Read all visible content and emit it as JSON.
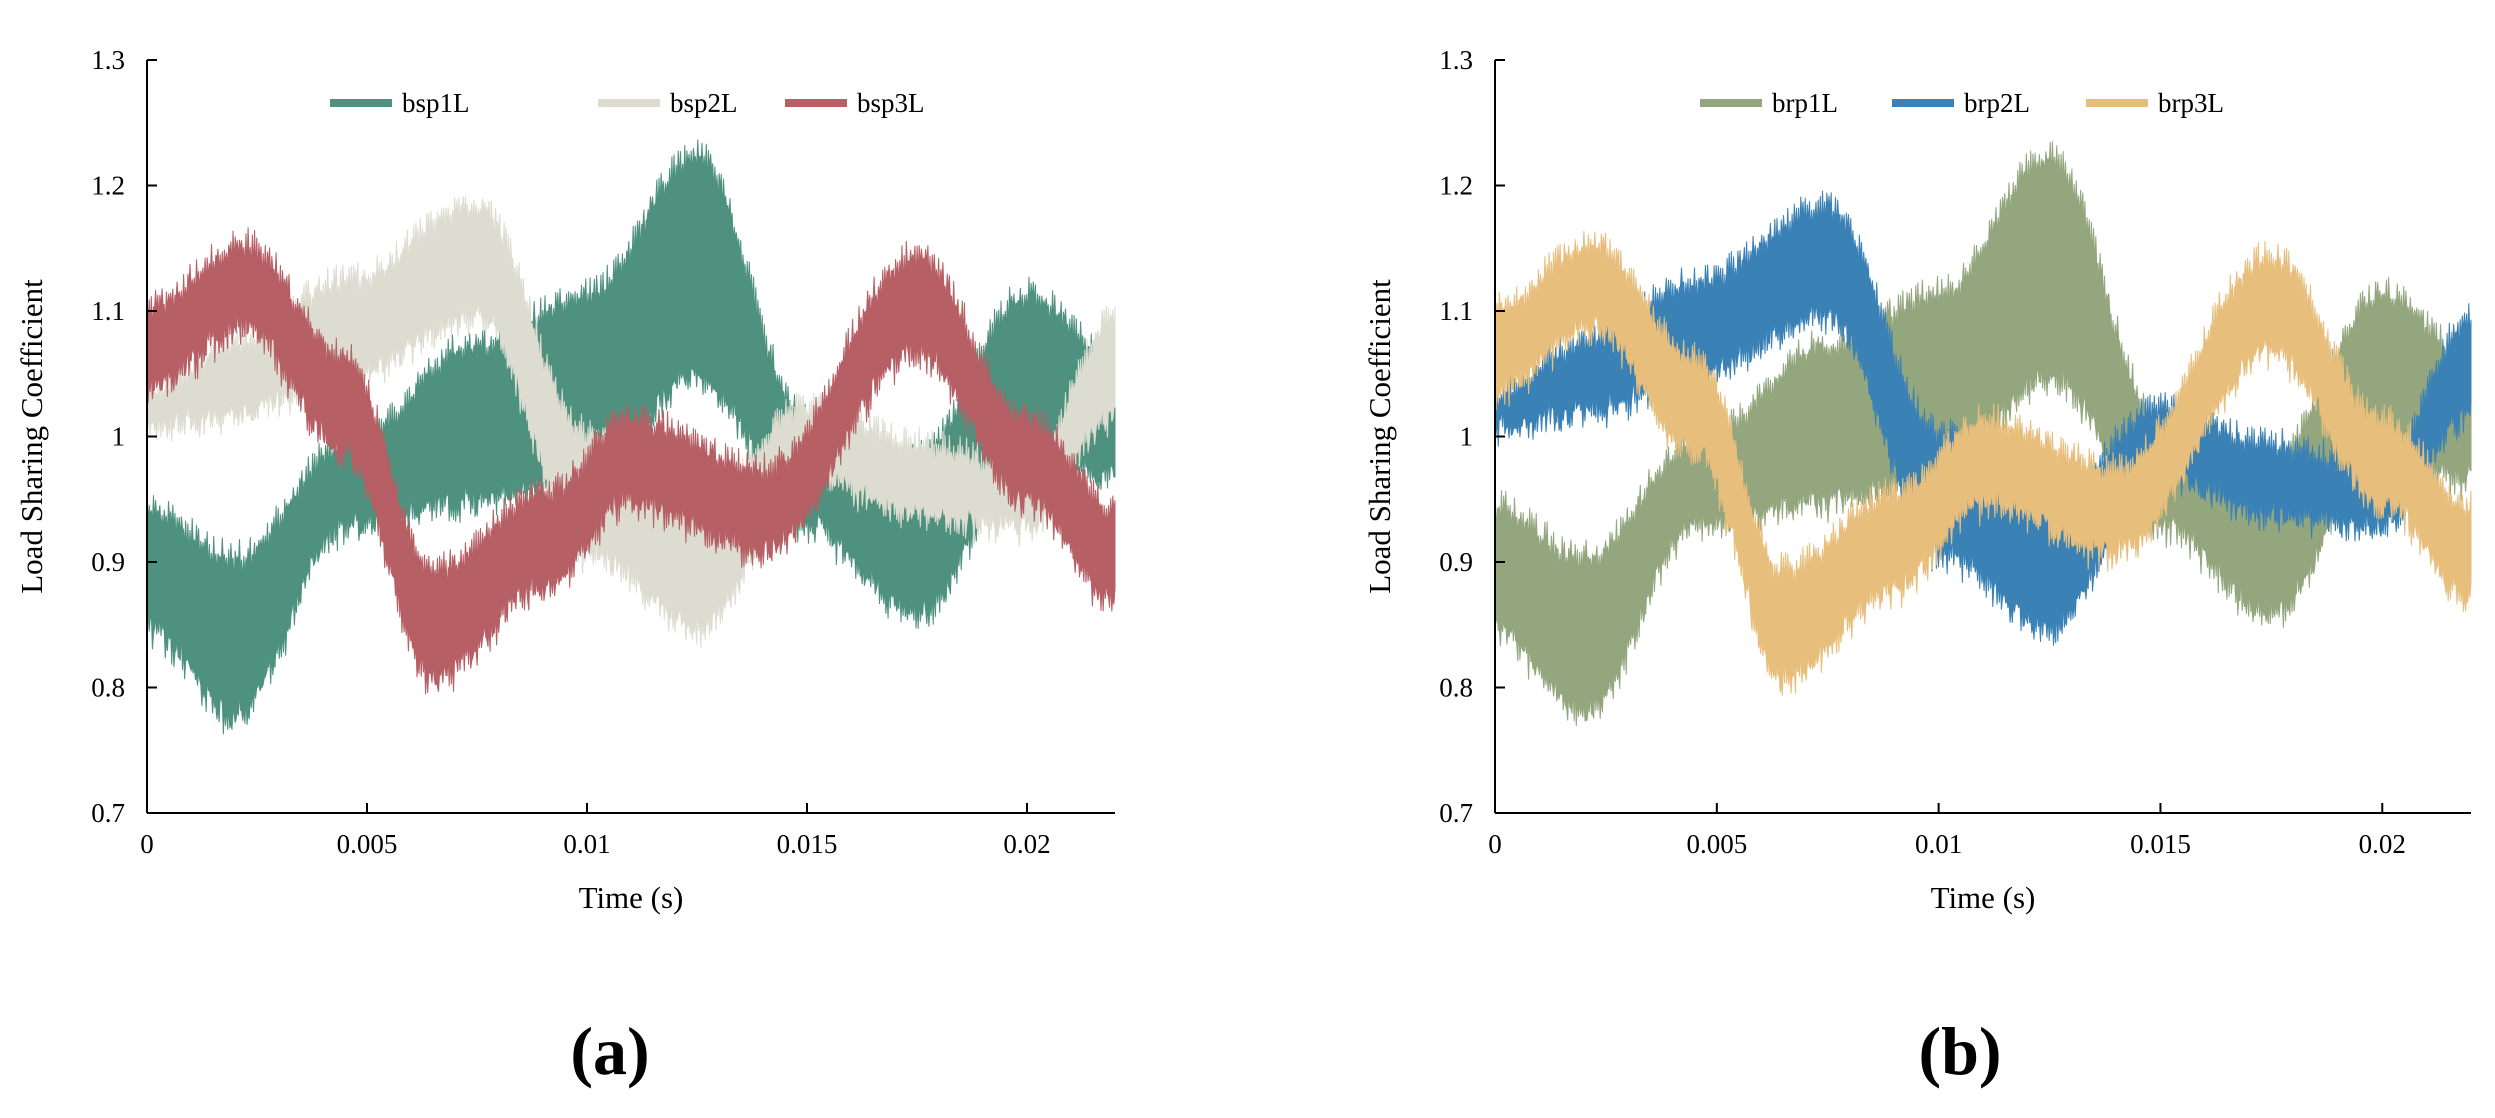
{
  "panel_labels": [
    "(a)",
    "(b)"
  ],
  "chart_data": [
    {
      "type": "line",
      "panel": "(a)",
      "xlabel": "Time (s)",
      "ylabel": "Load Sharing Coefficient",
      "xlim": [
        0,
        0.022
      ],
      "ylim": [
        0.7,
        1.3
      ],
      "xticks": [
        0,
        0.005,
        0.01,
        0.015,
        0.02
      ],
      "xtick_labels": [
        "0",
        "0.005",
        "0.01",
        "0.015",
        "0.02"
      ],
      "yticks": [
        0.7,
        0.8,
        0.9,
        1.0,
        1.1,
        1.2,
        1.3
      ],
      "ytick_labels": [
        "0.7",
        "0.8",
        "0.9",
        "1",
        "1.1",
        "1.2",
        "1.3"
      ],
      "grid": false,
      "legend_position": "top-center",
      "series": [
        {
          "name": "bsp1L",
          "color": "#4e917e",
          "x": [
            0,
            0.002,
            0.0045,
            0.0075,
            0.01,
            0.0125,
            0.015,
            0.0175,
            0.02,
            0.022
          ],
          "upper": [
            0.95,
            0.91,
            1.0,
            1.08,
            1.12,
            1.23,
            1.02,
            0.99,
            1.12,
            1.07
          ],
          "lower": [
            0.84,
            0.77,
            0.92,
            0.94,
            0.96,
            1.04,
            0.92,
            0.85,
            0.98,
            0.96
          ]
        },
        {
          "name": "bsp2L",
          "color": "#dcdcd0",
          "x": [
            0,
            0.002,
            0.0045,
            0.0075,
            0.01,
            0.0125,
            0.015,
            0.0175,
            0.02,
            0.022
          ],
          "upper": [
            1.04,
            1.08,
            1.13,
            1.19,
            1.01,
            0.95,
            1.03,
            1.0,
            0.98,
            1.1
          ],
          "lower": [
            1.0,
            1.01,
            1.04,
            1.09,
            0.9,
            0.84,
            0.96,
            0.93,
            0.92,
            1.01
          ]
        },
        {
          "name": "bsp3L",
          "color": "#b65f64",
          "x": [
            0,
            0.0022,
            0.0045,
            0.0065,
            0.009,
            0.011,
            0.014,
            0.0175,
            0.02,
            0.022
          ],
          "upper": [
            1.11,
            1.16,
            1.07,
            0.9,
            0.96,
            1.02,
            0.98,
            1.15,
            1.02,
            0.95
          ],
          "lower": [
            1.03,
            1.08,
            0.98,
            0.8,
            0.87,
            0.94,
            0.9,
            1.06,
            0.94,
            0.86
          ]
        }
      ]
    },
    {
      "type": "line",
      "panel": "(b)",
      "xlabel": "Time (s)",
      "ylabel": "Load Sharing Coefficient",
      "xlim": [
        0,
        0.022
      ],
      "ylim": [
        0.7,
        1.3
      ],
      "xticks": [
        0,
        0.005,
        0.01,
        0.015,
        0.02
      ],
      "xtick_labels": [
        "0",
        "0.005",
        "0.01",
        "0.015",
        "0.02"
      ],
      "yticks": [
        0.7,
        0.8,
        0.9,
        1.0,
        1.1,
        1.2,
        1.3
      ],
      "ytick_labels": [
        "0.7",
        "0.8",
        "0.9",
        "1",
        "1.1",
        "1.2",
        "1.3"
      ],
      "grid": false,
      "legend_position": "top-center",
      "series": [
        {
          "name": "brp1L",
          "color": "#93a67e",
          "x": [
            0,
            0.002,
            0.0045,
            0.0075,
            0.01,
            0.0125,
            0.015,
            0.0175,
            0.02,
            0.022
          ],
          "upper": [
            0.95,
            0.91,
            1.0,
            1.08,
            1.12,
            1.23,
            1.02,
            0.99,
            1.12,
            1.07
          ],
          "lower": [
            0.84,
            0.77,
            0.92,
            0.94,
            0.96,
            1.04,
            0.92,
            0.85,
            0.98,
            0.96
          ]
        },
        {
          "name": "brp2L",
          "color": "#3a81b6",
          "x": [
            0,
            0.002,
            0.0045,
            0.0075,
            0.01,
            0.0125,
            0.015,
            0.0175,
            0.02,
            0.022
          ],
          "upper": [
            1.04,
            1.08,
            1.13,
            1.19,
            1.01,
            0.95,
            1.03,
            1.0,
            0.98,
            1.1
          ],
          "lower": [
            1.0,
            1.01,
            1.04,
            1.09,
            0.9,
            0.84,
            0.96,
            0.93,
            0.92,
            1.01
          ]
        },
        {
          "name": "brp3L",
          "color": "#e8be7c",
          "x": [
            0,
            0.0022,
            0.0045,
            0.0065,
            0.009,
            0.011,
            0.014,
            0.0175,
            0.02,
            0.022
          ],
          "upper": [
            1.11,
            1.16,
            1.07,
            0.9,
            0.96,
            1.02,
            0.98,
            1.15,
            1.02,
            0.95
          ],
          "lower": [
            1.03,
            1.08,
            0.98,
            0.8,
            0.87,
            0.94,
            0.9,
            1.06,
            0.94,
            0.86
          ]
        }
      ]
    }
  ]
}
